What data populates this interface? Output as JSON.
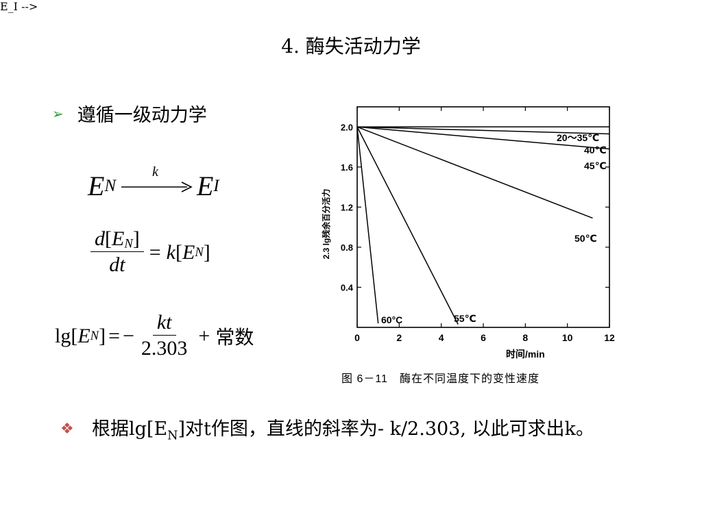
{
  "title": "4.  酶失活动力学",
  "bullet1": {
    "icon": "green-arrow-bullet",
    "text": "遵循一级动力学"
  },
  "equations": {
    "reaction": {
      "left": "E",
      "left_sub": "N",
      "rate": "k",
      "right": "E",
      "right_sub": "I"
    },
    "rate_law": {
      "num_d": "d",
      "num_open": "[",
      "var": "E",
      "sub": "N",
      "num_close": "]",
      "den": "dt",
      "rhs_eq": "=",
      "rhs_k": "k",
      "rhs_open": "[",
      "rhs_var": "E",
      "rhs_sub": "N",
      "rhs_close": "]"
    },
    "integrated": {
      "lg": "lg",
      "open": "[",
      "var": "E",
      "sub": "N",
      "close": "]",
      "eq": "=",
      "minus": "−",
      "num": "kt",
      "den": "2.303",
      "plus": "+",
      "const": "常数"
    }
  },
  "chart_data": {
    "type": "line",
    "xlim": [
      0,
      12
    ],
    "ylim": [
      0,
      2.2
    ],
    "x_ticks": [
      "0",
      "2",
      "4",
      "6",
      "8",
      "10",
      "12"
    ],
    "y_ticks": [
      "0.4",
      "0.8",
      "1.2",
      "1.6",
      "2.0"
    ],
    "xlabel": "时间/min",
    "ylabel": "2.3 lg残余百分活力",
    "caption": "图 6－11　酶在不同温度下的变性速度",
    "series": [
      {
        "name": "20～35℃",
        "x": [
          0,
          12
        ],
        "y": [
          2.0,
          2.0
        ]
      },
      {
        "name": "40℃",
        "x": [
          0,
          12
        ],
        "y": [
          2.0,
          1.93
        ]
      },
      {
        "name": "45℃",
        "x": [
          0,
          12
        ],
        "y": [
          2.0,
          1.78
        ]
      },
      {
        "name": "50℃",
        "x": [
          0,
          11.2
        ],
        "y": [
          2.0,
          1.09
        ]
      },
      {
        "name": "55℃",
        "x": [
          0,
          4.8
        ],
        "y": [
          2.0,
          0.03
        ]
      },
      {
        "name": "60°C",
        "x": [
          0,
          1.0
        ],
        "y": [
          2.0,
          0.04
        ]
      }
    ]
  },
  "bullet2": {
    "icon": "red-diamond-bullet",
    "text_before": "根据lg[E",
    "text_sub": "N",
    "text_after": "]对t作图，直线的斜率为-  k/2.303,  以此可求出k。"
  }
}
